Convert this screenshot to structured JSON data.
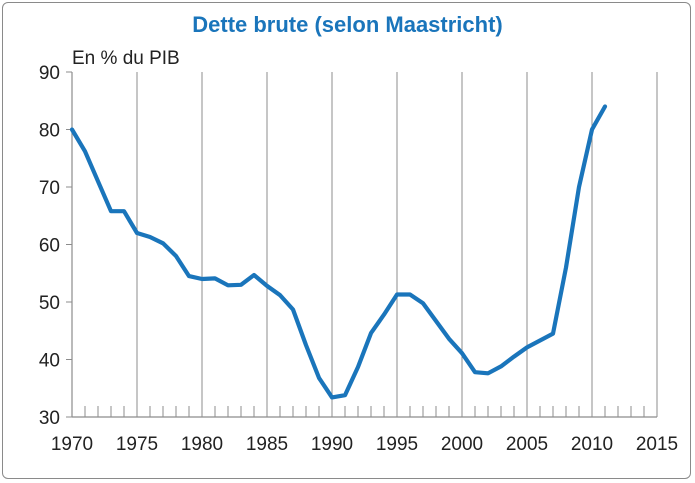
{
  "chart_data": {
    "type": "line",
    "title": "Dette brute (selon Maastricht)",
    "ylabel": "En % du PIB",
    "xlabel": "",
    "xlim": [
      1970,
      2015
    ],
    "ylim": [
      30,
      90
    ],
    "x_ticks": [
      1970,
      1975,
      1980,
      1985,
      1990,
      1995,
      2000,
      2005,
      2010,
      2015
    ],
    "y_ticks": [
      30,
      40,
      50,
      60,
      70,
      80,
      90
    ],
    "grid": "vertical",
    "series": [
      {
        "color": "#1a75bb",
        "x": [
          1970,
          1971,
          1972,
          1973,
          1974,
          1975,
          1976,
          1977,
          1978,
          1979,
          1980,
          1981,
          1982,
          1983,
          1984,
          1985,
          1986,
          1987,
          1988,
          1989,
          1990,
          1991,
          1992,
          1993,
          1994,
          1995,
          1996,
          1997,
          1998,
          1999,
          2000,
          2001,
          2002,
          2003,
          2004,
          2005,
          2006,
          2007,
          2008,
          2009,
          2010,
          2011
        ],
        "values": [
          80.0,
          76.2,
          71.0,
          65.8,
          65.8,
          62.0,
          61.3,
          60.2,
          58.0,
          54.5,
          54.0,
          54.1,
          52.9,
          53.0,
          54.7,
          52.8,
          51.2,
          48.7,
          42.5,
          36.8,
          33.4,
          33.8,
          38.7,
          44.6,
          47.8,
          51.3,
          51.3,
          49.8,
          46.7,
          43.6,
          41.1,
          37.8,
          37.6,
          38.8,
          40.5,
          42.1,
          43.3,
          44.5,
          56.0,
          70.0,
          80.0,
          84.0
        ]
      }
    ]
  }
}
